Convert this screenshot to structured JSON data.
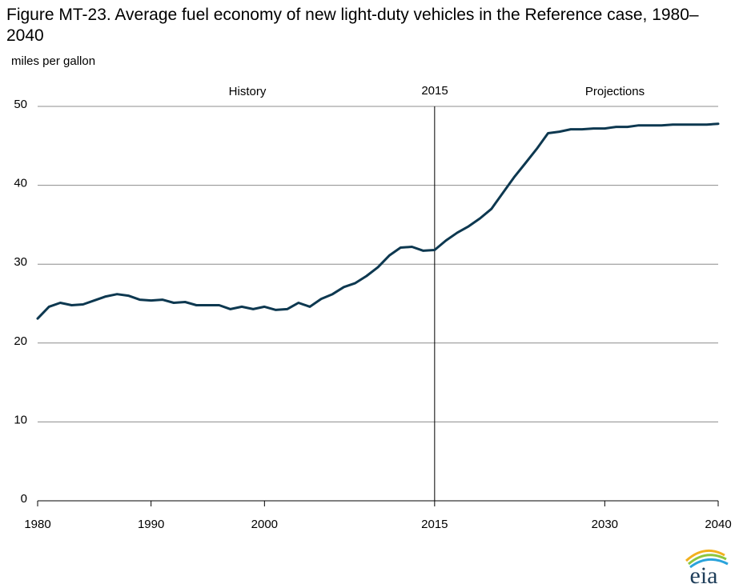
{
  "figure": {
    "title": "Figure MT-23. Average fuel economy of new light-duty vehicles in the Reference case, 1980–2040",
    "units_label": "miles per gallon"
  },
  "annotations": {
    "history": "History",
    "divider_year": "2015",
    "projections": "Projections"
  },
  "logo": {
    "text": "eia"
  },
  "colors": {
    "line": "#0d3850",
    "grid": "#8c8c8c",
    "divider": "#000000"
  },
  "chart_data": {
    "type": "line",
    "title": "Figure MT-23. Average fuel economy of new light-duty vehicles in the Reference case, 1980–2040",
    "ylabel": "miles per gallon",
    "xlabel": "",
    "xlim": [
      1980,
      2040
    ],
    "ylim": [
      0,
      50
    ],
    "x_ticks": [
      1980,
      1990,
      2000,
      2015,
      2030,
      2040
    ],
    "y_ticks": [
      0,
      10,
      20,
      30,
      40,
      50
    ],
    "grid": "horizontal",
    "vertical_marker": 2015,
    "series": [
      {
        "x": [
          1980,
          1981,
          1982,
          1983,
          1984,
          1985,
          1986,
          1987,
          1988,
          1989,
          1990,
          1991,
          1992,
          1993,
          1994,
          1995,
          1996,
          1997,
          1998,
          1999,
          2000,
          2001,
          2002,
          2003,
          2004,
          2005,
          2006,
          2007,
          2008,
          2009,
          2010,
          2011,
          2012,
          2013,
          2014,
          2015,
          2016,
          2017,
          2018,
          2019,
          2020,
          2021,
          2022,
          2023,
          2024,
          2025,
          2026,
          2027,
          2028,
          2029,
          2030,
          2031,
          2032,
          2033,
          2034,
          2035,
          2036,
          2037,
          2038,
          2039,
          2040
        ],
        "values": [
          23.1,
          24.6,
          25.1,
          24.8,
          24.9,
          25.4,
          25.9,
          26.2,
          26.0,
          25.5,
          25.4,
          25.5,
          25.1,
          25.2,
          24.8,
          24.8,
          24.8,
          24.3,
          24.6,
          24.3,
          24.6,
          24.2,
          24.3,
          25.1,
          24.6,
          25.6,
          26.2,
          27.1,
          27.6,
          28.5,
          29.6,
          31.1,
          32.1,
          32.2,
          31.7,
          31.8,
          33.0,
          34.0,
          34.8,
          35.8,
          37.0,
          39.0,
          41.0,
          42.8,
          44.6,
          46.6,
          46.8,
          47.1,
          47.1,
          47.2,
          47.2,
          47.4,
          47.4,
          47.6,
          47.6,
          47.6,
          47.7,
          47.7,
          47.7,
          47.7,
          47.8
        ]
      }
    ]
  }
}
